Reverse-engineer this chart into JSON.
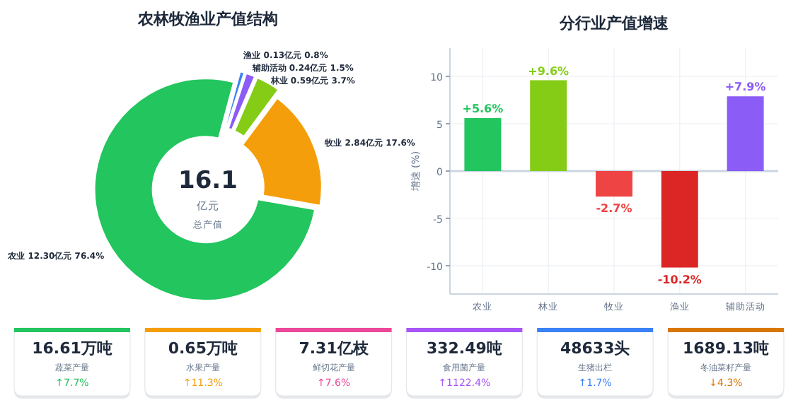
{
  "chart_data": [
    {
      "type": "donut",
      "title": "农林牧渔业产值结构",
      "categories": [
        "农业",
        "牧业",
        "林业",
        "辅助活动",
        "渔业"
      ],
      "values": [
        12.3,
        2.84,
        0.59,
        0.24,
        0.13
      ],
      "value_labels": [
        "12.30亿元  76.4%",
        "2.84亿元  17.6%",
        "0.59亿元  3.7%",
        "0.24亿元  1.5%",
        "0.13亿元  0.8%"
      ],
      "colors": [
        "#22c55e",
        "#f59e0b",
        "#84cc16",
        "#8b5cf6",
        "#3b82f6"
      ],
      "annotations": [
        "16.1",
        "亿元",
        "总产值"
      ]
    },
    {
      "type": "bar",
      "title": "分行业产值增速",
      "ylabel": "增速 (%)",
      "categories": [
        "农业",
        "林业",
        "牧业",
        "渔业",
        "辅助活动"
      ],
      "values": [
        5.6,
        9.6,
        -2.7,
        -10.2,
        7.9
      ],
      "colors": [
        "#22c55e",
        "#84cc16",
        "#ef4444",
        "#dc2626",
        "#8b5cf6"
      ],
      "value_labels": [
        "+5.6%",
        "+9.6%",
        "-2.7%",
        "-10.2%",
        "+7.9%"
      ],
      "ylim": [
        -13,
        13
      ],
      "yticks": [
        -10,
        -5,
        0,
        5,
        10
      ],
      "grid": true,
      "ref_lines": [
        {
          "axis": "y",
          "value": 0,
          "color": "#cbd5e1"
        }
      ]
    },
    {
      "type": "other",
      "categories": [
        "蔬菜产量",
        "水果产量",
        "鲜切花产量",
        "食用菌产量",
        "生猪出栏",
        "冬油菜籽产量"
      ],
      "values": [
        16.61,
        0.65,
        7.31,
        332.49,
        48633,
        1689.13
      ],
      "value_labels": [
        "16.61万吨",
        "0.65万吨",
        "7.31亿枝",
        "332.49吨",
        "48633头",
        "1689.13吨"
      ],
      "annotations": [
        "↑7.7%",
        "↑11.3%",
        "↑7.6%",
        "↑1122.4%",
        "↑1.7%",
        "↓4.3%"
      ]
    }
  ]
}
